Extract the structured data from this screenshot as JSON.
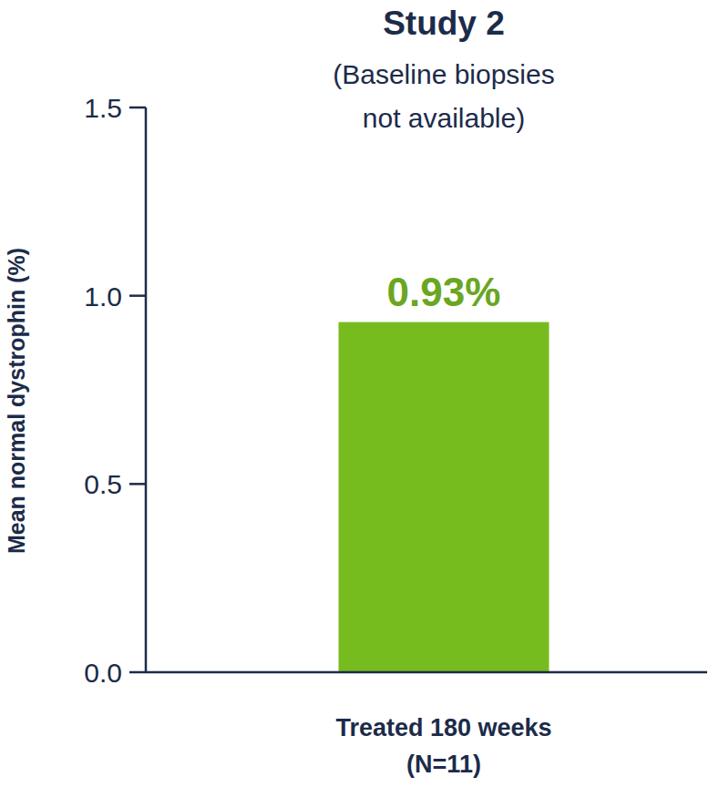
{
  "chart_data": {
    "type": "bar",
    "title": "Study 2",
    "subtitle": [
      "(Baseline biopsies",
      "not available)"
    ],
    "y_label": "Mean normal dystrophin (%)",
    "categories": [
      "Treated 180 weeks (N=11)"
    ],
    "values": [
      0.93
    ],
    "value_labels": [
      "0.93%"
    ],
    "data_labels": true,
    "color": "#77bc1f",
    "ylim": [
      0,
      1.5
    ],
    "yticks": [
      {
        "value": 0,
        "label": "0.0"
      },
      0.5,
      {
        "value": 1,
        "label": "1.0"
      },
      {
        "value": 1.5,
        "label": "1.5"
      }
    ],
    "grid": false
  }
}
